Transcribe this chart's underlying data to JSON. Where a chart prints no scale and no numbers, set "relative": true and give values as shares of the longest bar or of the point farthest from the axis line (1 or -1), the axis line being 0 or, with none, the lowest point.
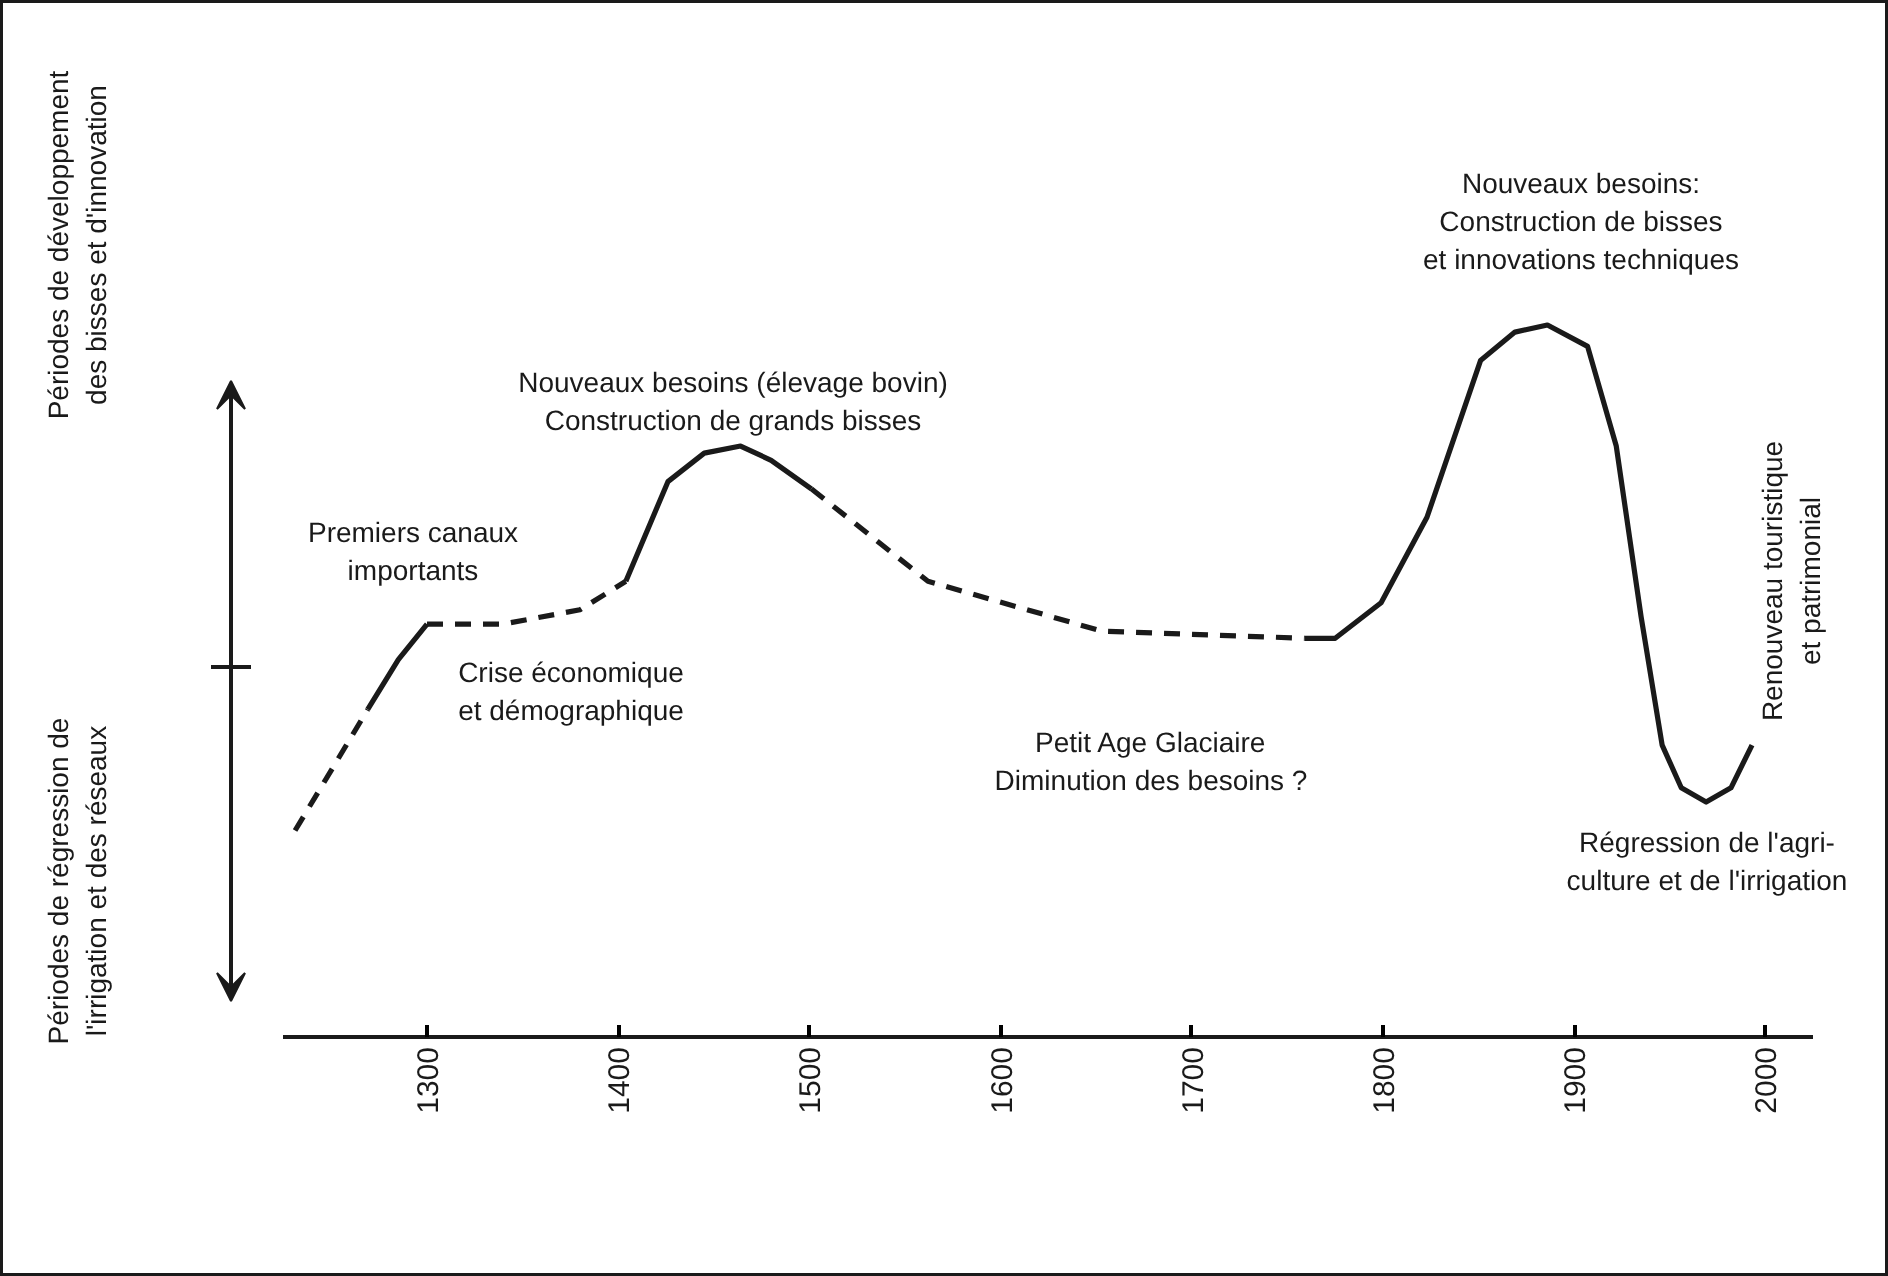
{
  "chart_data": {
    "type": "line",
    "relative": true,
    "xlim": [
      1225,
      2025
    ],
    "xticks": [
      1300,
      1400,
      1500,
      1600,
      1700,
      1800,
      1900,
      2000
    ],
    "series": [
      {
        "color": "#1a1a1a",
        "line_style": "dashed",
        "x": [
          1231,
          1269
        ],
        "values": [
          0.29,
          0.46
        ]
      },
      {
        "color": "#1a1a1a",
        "line_style": "solid",
        "x": [
          1269,
          1285,
          1300
        ],
        "values": [
          0.46,
          0.53,
          0.58
        ]
      },
      {
        "color": "#1a1a1a",
        "line_style": "dashed",
        "x": [
          1300,
          1340,
          1380,
          1404
        ],
        "values": [
          0.58,
          0.58,
          0.6,
          0.64
        ]
      },
      {
        "color": "#1a1a1a",
        "line_style": "solid",
        "x": [
          1404,
          1426,
          1445,
          1464,
          1480,
          1501
        ],
        "values": [
          0.64,
          0.78,
          0.82,
          0.83,
          0.81,
          0.77
        ]
      },
      {
        "color": "#1a1a1a",
        "line_style": "dashed",
        "x": [
          1501,
          1562,
          1653,
          1759
        ],
        "values": [
          0.77,
          0.64,
          0.57,
          0.56
        ]
      },
      {
        "color": "#1a1a1a",
        "line_style": "solid",
        "x": [
          1759,
          1775,
          1799,
          1823,
          1851,
          1869,
          1886,
          1907,
          1922,
          1935,
          1946,
          1956,
          1969,
          1982,
          1993
        ],
        "values": [
          0.56,
          0.56,
          0.61,
          0.73,
          0.95,
          0.99,
          1.0,
          0.97,
          0.83,
          0.59,
          0.41,
          0.35,
          0.33,
          0.35,
          0.41
        ]
      }
    ],
    "annotations": [
      "Périodes de développement\ndes bisses et d'innovation",
      "Périodes de régression de\nl'irrigation et des réseaux",
      "Premiers canaux\nimportants",
      "Nouveaux besoins (élevage bovin)\nConstruction de grands bisses",
      "Crise économique\net démographique",
      "Petit Age Glaciaire\nDiminution des besoins ?",
      "Nouveaux besoins:\nConstruction de bisses\net innovations techniques",
      "Renouveau touristique\net patrimonial",
      "Régression de l'agri-\nculture et de l'irrigation"
    ]
  }
}
